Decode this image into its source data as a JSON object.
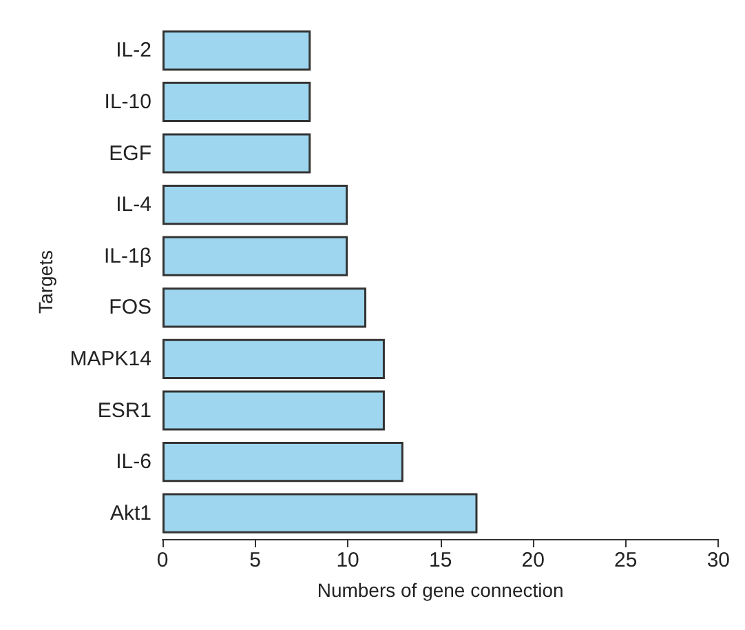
{
  "chart_data": {
    "type": "bar",
    "orientation": "horizontal",
    "xlabel": "Numbers of gene connection",
    "ylabel": "Targets",
    "categories": [
      "IL-2",
      "IL-10",
      "EGF",
      "IL-4",
      "IL-1β",
      "FOS",
      "MAPK14",
      "ESR1",
      "IL-6",
      "Akt1"
    ],
    "values": [
      8,
      8,
      8,
      10,
      10,
      11,
      12,
      12,
      13,
      17
    ],
    "color": "#9dd6ee",
    "xlim": [
      0,
      30
    ],
    "xticks": [
      0,
      5,
      10,
      15,
      20,
      25,
      30
    ],
    "grid": false
  }
}
